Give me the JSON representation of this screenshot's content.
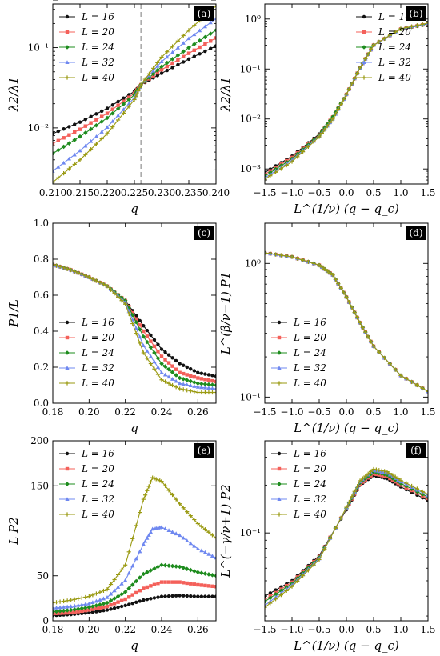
{
  "colors": {
    "L16": "#111111",
    "L20": "#f4605a",
    "L24": "#1e8c1e",
    "L32": "#6f88f0",
    "L40": "#9a9a12",
    "vline": "#999999"
  },
  "chart_data": [
    {
      "id": "a",
      "tag": "(a)",
      "type": "line",
      "yscale": "log",
      "xlabel": "q",
      "ylabel": "λ2/λ1",
      "xlim": [
        0.21,
        0.24
      ],
      "ylim": [
        0.002,
        0.35
      ],
      "xticks": [
        "0.210",
        "0.215",
        "0.220",
        "0.225",
        "0.230",
        "0.235",
        "0.240"
      ],
      "yticks": [
        "10⁻²",
        "10⁻¹"
      ],
      "vline": 0.2262,
      "legend": "top-left",
      "series": [
        {
          "name": "L = 16",
          "color": "#111111",
          "marker": "dot",
          "x": [
            0.21,
            0.215,
            0.22,
            0.225,
            0.2262,
            0.23,
            0.235,
            0.24
          ],
          "y": [
            0.0085,
            0.0118,
            0.0175,
            0.0285,
            0.0345,
            0.048,
            0.072,
            0.105
          ]
        },
        {
          "name": "L = 20",
          "color": "#f4605a",
          "marker": "square",
          "x": [
            0.21,
            0.215,
            0.22,
            0.225,
            0.2262,
            0.23,
            0.235,
            0.24
          ],
          "y": [
            0.0064,
            0.0096,
            0.0152,
            0.027,
            0.0345,
            0.053,
            0.085,
            0.132
          ]
        },
        {
          "name": "L = 24",
          "color": "#1e8c1e",
          "marker": "diamond",
          "x": [
            0.21,
            0.215,
            0.22,
            0.225,
            0.2262,
            0.23,
            0.235,
            0.24
          ],
          "y": [
            0.0048,
            0.0078,
            0.0133,
            0.0258,
            0.0345,
            0.058,
            0.1,
            0.165
          ]
        },
        {
          "name": "L = 32",
          "color": "#6f88f0",
          "marker": "triangle",
          "x": [
            0.21,
            0.215,
            0.22,
            0.225,
            0.2262,
            0.23,
            0.235,
            0.24
          ],
          "y": [
            0.0029,
            0.0052,
            0.0102,
            0.0238,
            0.0345,
            0.067,
            0.13,
            0.23
          ]
        },
        {
          "name": "L = 40",
          "color": "#9a9a12",
          "marker": "plus",
          "x": [
            0.21,
            0.215,
            0.22,
            0.225,
            0.2262,
            0.23,
            0.235,
            0.24
          ],
          "y": [
            0.0021,
            0.004,
            0.0085,
            0.0225,
            0.0345,
            0.076,
            0.165,
            0.33
          ]
        }
      ]
    },
    {
      "id": "b",
      "tag": "(b)",
      "type": "line",
      "yscale": "log",
      "xlabel": "L^(1/ν) (q − q_c)",
      "ylabel": "λ2/λ1",
      "xlim": [
        -1.5,
        1.5
      ],
      "ylim": [
        0.0005,
        2.0
      ],
      "xticks": [
        "−1.5",
        "−1.0",
        "−0.5",
        "0.0",
        "0.5",
        "1.0",
        "1.5"
      ],
      "yticks": [
        "10⁻³",
        "10⁻²",
        "10⁻¹",
        "10⁰"
      ],
      "legend": "top-right",
      "series": [
        {
          "name": "L = 16",
          "color": "#111111",
          "marker": "dot",
          "x": [
            -1.5,
            -1.0,
            -0.5,
            -0.25,
            0.0,
            0.25,
            0.5,
            1.0,
            1.5
          ],
          "y": [
            0.00085,
            0.0018,
            0.005,
            0.011,
            0.031,
            0.105,
            0.3,
            0.63,
            0.8
          ]
        },
        {
          "name": "L = 20",
          "color": "#f4605a",
          "marker": "square",
          "x": [
            -1.5,
            -1.0,
            -0.5,
            -0.25,
            0.0,
            0.25,
            0.5,
            1.0,
            1.5
          ],
          "y": [
            0.00078,
            0.0017,
            0.0048,
            0.011,
            0.031,
            0.105,
            0.3,
            0.63,
            0.8
          ]
        },
        {
          "name": "L = 24",
          "color": "#1e8c1e",
          "marker": "diamond",
          "x": [
            -1.5,
            -1.0,
            -0.5,
            -0.25,
            0.0,
            0.25,
            0.5,
            1.0,
            1.5
          ],
          "y": [
            0.00072,
            0.0016,
            0.0047,
            0.011,
            0.031,
            0.105,
            0.3,
            0.63,
            0.8
          ]
        },
        {
          "name": "L = 32",
          "color": "#6f88f0",
          "marker": "triangle",
          "x": [
            -1.5,
            -1.0,
            -0.5,
            -0.25,
            0.0,
            0.25,
            0.5,
            1.0,
            1.5
          ],
          "y": [
            0.00066,
            0.0015,
            0.0045,
            0.01,
            0.031,
            0.105,
            0.3,
            0.64,
            0.82
          ]
        },
        {
          "name": "L = 40",
          "color": "#9a9a12",
          "marker": "plus",
          "x": [
            -1.5,
            -1.0,
            -0.5,
            -0.25,
            0.0,
            0.25,
            0.5,
            1.0,
            1.5
          ],
          "y": [
            0.00062,
            0.0014,
            0.0044,
            0.01,
            0.031,
            0.105,
            0.3,
            0.64,
            0.83
          ]
        }
      ]
    },
    {
      "id": "c",
      "tag": "(c)",
      "type": "line",
      "yscale": "linear",
      "xlabel": "q",
      "ylabel": "P1/L",
      "xlim": [
        0.18,
        0.27
      ],
      "ylim": [
        0.0,
        1.0
      ],
      "xticks": [
        "0.18",
        "0.20",
        "0.22",
        "0.24",
        "0.26"
      ],
      "yticks": [
        "0.0",
        "0.2",
        "0.4",
        "0.6",
        "0.8",
        "1.0"
      ],
      "legend": "bottom-left",
      "series": [
        {
          "name": "L = 16",
          "color": "#111111",
          "marker": "dot",
          "x": [
            0.18,
            0.19,
            0.2,
            0.21,
            0.22,
            0.23,
            0.24,
            0.25,
            0.26,
            0.27
          ],
          "y": [
            0.77,
            0.74,
            0.7,
            0.65,
            0.57,
            0.43,
            0.3,
            0.22,
            0.17,
            0.15
          ]
        },
        {
          "name": "L = 20",
          "color": "#f4605a",
          "marker": "square",
          "x": [
            0.18,
            0.19,
            0.2,
            0.21,
            0.22,
            0.23,
            0.24,
            0.25,
            0.26,
            0.27
          ],
          "y": [
            0.77,
            0.74,
            0.7,
            0.65,
            0.57,
            0.4,
            0.26,
            0.17,
            0.14,
            0.12
          ]
        },
        {
          "name": "L = 24",
          "color": "#1e8c1e",
          "marker": "diamond",
          "x": [
            0.18,
            0.19,
            0.2,
            0.21,
            0.22,
            0.23,
            0.24,
            0.25,
            0.26,
            0.27
          ],
          "y": [
            0.77,
            0.74,
            0.7,
            0.65,
            0.57,
            0.37,
            0.22,
            0.14,
            0.11,
            0.1
          ]
        },
        {
          "name": "L = 32",
          "color": "#6f88f0",
          "marker": "triangle",
          "x": [
            0.18,
            0.19,
            0.2,
            0.21,
            0.22,
            0.23,
            0.24,
            0.25,
            0.26,
            0.27
          ],
          "y": [
            0.77,
            0.74,
            0.7,
            0.65,
            0.56,
            0.32,
            0.17,
            0.11,
            0.09,
            0.08
          ]
        },
        {
          "name": "L = 40",
          "color": "#9a9a12",
          "marker": "plus",
          "x": [
            0.18,
            0.19,
            0.2,
            0.21,
            0.22,
            0.23,
            0.24,
            0.25,
            0.26,
            0.27
          ],
          "y": [
            0.77,
            0.74,
            0.7,
            0.65,
            0.55,
            0.28,
            0.13,
            0.08,
            0.06,
            0.06
          ]
        }
      ]
    },
    {
      "id": "d",
      "tag": "(d)",
      "type": "line",
      "yscale": "log",
      "xlabel": "L^(1/ν) (q − q_c)",
      "ylabel": "L^(β/ν−1) P1",
      "xlim": [
        -1.5,
        1.5
      ],
      "ylim": [
        0.09,
        2.0
      ],
      "xticks": [
        "−1.5",
        "−1.0",
        "−0.5",
        "0.0",
        "0.5",
        "1.0",
        "1.5"
      ],
      "yticks": [
        "10⁻¹",
        "10⁰"
      ],
      "legend": "bottom-left",
      "series": [
        {
          "name": "L = 16",
          "color": "#111111",
          "marker": "dot",
          "x": [
            -1.5,
            -1.0,
            -0.5,
            -0.25,
            0.0,
            0.25,
            0.5,
            1.0,
            1.5
          ],
          "y": [
            1.2,
            1.12,
            0.97,
            0.82,
            0.56,
            0.36,
            0.24,
            0.145,
            0.11
          ]
        },
        {
          "name": "L = 20",
          "color": "#f4605a",
          "marker": "square",
          "x": [
            -1.5,
            -1.0,
            -0.5,
            -0.25,
            0.0,
            0.25,
            0.5,
            1.0,
            1.5
          ],
          "y": [
            1.2,
            1.12,
            0.97,
            0.82,
            0.56,
            0.36,
            0.24,
            0.145,
            0.11
          ]
        },
        {
          "name": "L = 24",
          "color": "#1e8c1e",
          "marker": "diamond",
          "x": [
            -1.5,
            -1.0,
            -0.5,
            -0.25,
            0.0,
            0.25,
            0.5,
            1.0,
            1.5
          ],
          "y": [
            1.2,
            1.12,
            0.97,
            0.82,
            0.56,
            0.36,
            0.24,
            0.145,
            0.11
          ]
        },
        {
          "name": "L = 32",
          "color": "#6f88f0",
          "marker": "triangle",
          "x": [
            -1.5,
            -1.0,
            -0.5,
            -0.25,
            0.0,
            0.25,
            0.5,
            1.0,
            1.5
          ],
          "y": [
            1.2,
            1.12,
            0.97,
            0.82,
            0.56,
            0.36,
            0.24,
            0.145,
            0.11
          ]
        },
        {
          "name": "L = 40",
          "color": "#9a9a12",
          "marker": "plus",
          "x": [
            -1.5,
            -1.0,
            -0.5,
            -0.25,
            0.0,
            0.25,
            0.5,
            1.0,
            1.5
          ],
          "y": [
            1.2,
            1.12,
            0.97,
            0.82,
            0.56,
            0.36,
            0.24,
            0.145,
            0.11
          ]
        }
      ]
    },
    {
      "id": "e",
      "tag": "(e)",
      "type": "line",
      "yscale": "linear",
      "xlabel": "q",
      "ylabel": "L P2",
      "xlim": [
        0.18,
        0.27
      ],
      "ylim": [
        0,
        200
      ],
      "xticks": [
        "0.18",
        "0.20",
        "0.22",
        "0.24",
        "0.26"
      ],
      "yticks": [
        "0",
        "50",
        "100",
        "150",
        "200"
      ],
      "legend": "top-left",
      "series": [
        {
          "name": "L = 16",
          "color": "#111111",
          "marker": "dot",
          "x": [
            0.18,
            0.19,
            0.2,
            0.21,
            0.22,
            0.23,
            0.24,
            0.25,
            0.26,
            0.27
          ],
          "y": [
            6,
            7,
            9,
            12,
            17,
            23,
            27,
            28,
            27,
            27
          ]
        },
        {
          "name": "L = 20",
          "color": "#f4605a",
          "marker": "square",
          "x": [
            0.18,
            0.19,
            0.2,
            0.21,
            0.22,
            0.23,
            0.24,
            0.25,
            0.26,
            0.27
          ],
          "y": [
            8,
            9,
            12,
            16,
            24,
            36,
            43,
            43,
            40,
            38
          ]
        },
        {
          "name": "L = 24",
          "color": "#1e8c1e",
          "marker": "diamond",
          "x": [
            0.18,
            0.19,
            0.2,
            0.21,
            0.22,
            0.23,
            0.24,
            0.25,
            0.26,
            0.27
          ],
          "y": [
            10,
            12,
            15,
            20,
            32,
            52,
            62,
            60,
            54,
            50
          ]
        },
        {
          "name": "L = 32",
          "color": "#6f88f0",
          "marker": "triangle",
          "x": [
            0.18,
            0.19,
            0.2,
            0.21,
            0.22,
            0.23,
            0.235,
            0.24,
            0.25,
            0.26,
            0.27
          ],
          "y": [
            14,
            16,
            19,
            26,
            45,
            85,
            102,
            104,
            95,
            80,
            70
          ]
        },
        {
          "name": "L = 40",
          "color": "#9a9a12",
          "marker": "plus",
          "x": [
            0.18,
            0.19,
            0.2,
            0.21,
            0.22,
            0.23,
            0.235,
            0.24,
            0.25,
            0.26,
            0.27
          ],
          "y": [
            20,
            23,
            27,
            35,
            62,
            135,
            159,
            155,
            130,
            108,
            92
          ]
        }
      ]
    },
    {
      "id": "f",
      "tag": "(f)",
      "type": "line",
      "yscale": "log",
      "xlabel": "L^(1/ν) (q − q_c)",
      "ylabel": "L^(−γ/ν+1) P2",
      "xlim": [
        -1.5,
        1.5
      ],
      "ylim": [
        0.028,
        0.38
      ],
      "xticks": [
        "−1.5",
        "−1.0",
        "−0.5",
        "0.0",
        "0.5",
        "1.0",
        "1.5"
      ],
      "yticks": [
        "10⁻¹"
      ],
      "legend": "top-left",
      "series": [
        {
          "name": "L = 16",
          "color": "#111111",
          "marker": "dot",
          "x": [
            -1.5,
            -1.0,
            -0.5,
            0.0,
            0.25,
            0.5,
            0.75,
            1.0,
            1.5
          ],
          "y": [
            0.04,
            0.05,
            0.072,
            0.14,
            0.2,
            0.23,
            0.22,
            0.195,
            0.16
          ]
        },
        {
          "name": "L = 20",
          "color": "#f4605a",
          "marker": "square",
          "x": [
            -1.5,
            -1.0,
            -0.5,
            0.0,
            0.25,
            0.5,
            0.75,
            1.0,
            1.5
          ],
          "y": [
            0.038,
            0.049,
            0.071,
            0.142,
            0.203,
            0.236,
            0.226,
            0.2,
            0.165
          ]
        },
        {
          "name": "L = 24",
          "color": "#1e8c1e",
          "marker": "diamond",
          "x": [
            -1.5,
            -1.0,
            -0.5,
            0.0,
            0.25,
            0.5,
            0.75,
            1.0,
            1.5
          ],
          "y": [
            0.037,
            0.048,
            0.07,
            0.143,
            0.207,
            0.242,
            0.232,
            0.205,
            0.168
          ]
        },
        {
          "name": "L = 32",
          "color": "#6f88f0",
          "marker": "triangle",
          "x": [
            -1.5,
            -1.0,
            -0.5,
            0.0,
            0.25,
            0.5,
            0.75,
            1.0,
            1.5
          ],
          "y": [
            0.035,
            0.047,
            0.069,
            0.144,
            0.21,
            0.248,
            0.238,
            0.21,
            0.172
          ]
        },
        {
          "name": "L = 40",
          "color": "#9a9a12",
          "marker": "plus",
          "x": [
            -1.5,
            -1.0,
            -0.5,
            0.0,
            0.25,
            0.5,
            0.75,
            1.0,
            1.5
          ],
          "y": [
            0.034,
            0.046,
            0.068,
            0.145,
            0.213,
            0.252,
            0.243,
            0.214,
            0.175
          ]
        }
      ]
    }
  ]
}
